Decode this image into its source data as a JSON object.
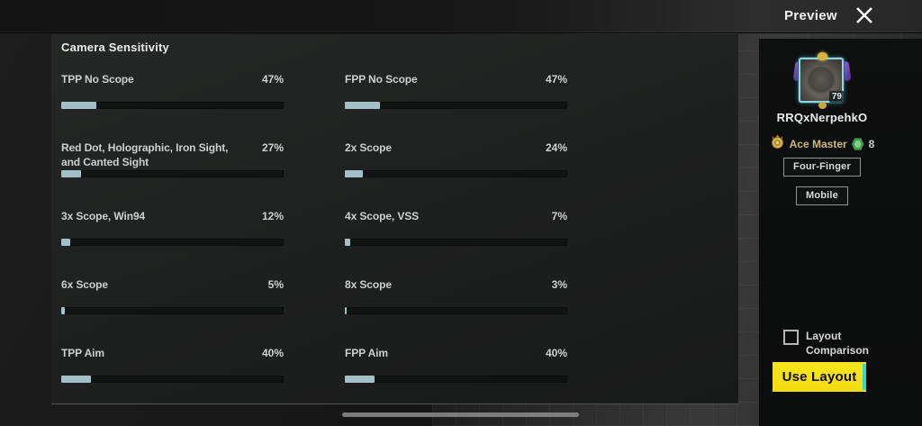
{
  "header": {
    "title": "Preview",
    "close_icon": "x-close"
  },
  "camera": {
    "title": "Camera Sensitivity",
    "slider_range_max": 300,
    "rows": [
      {
        "cells": [
          {
            "label": "TPP No Scope",
            "value": 47,
            "percent": "47%"
          },
          {
            "label": "FPP No Scope",
            "value": 47,
            "percent": "47%"
          }
        ]
      },
      {
        "cells": [
          {
            "label": "Red Dot, Holographic, Iron Sight, and Canted Sight",
            "value": 27,
            "percent": "27%"
          },
          {
            "label": "2x Scope",
            "value": 24,
            "percent": "24%"
          }
        ]
      },
      {
        "cells": [
          {
            "label": "3x Scope, Win94",
            "value": 12,
            "percent": "12%"
          },
          {
            "label": "4x Scope, VSS",
            "value": 7,
            "percent": "7%"
          }
        ]
      },
      {
        "cells": [
          {
            "label": "6x Scope",
            "value": 5,
            "percent": "5%"
          },
          {
            "label": "8x Scope",
            "value": 3,
            "percent": "3%"
          }
        ]
      },
      {
        "cells": [
          {
            "label": "TPP Aim",
            "value": 40,
            "percent": "40%"
          },
          {
            "label": "FPP Aim",
            "value": 40,
            "percent": "40%"
          }
        ]
      }
    ]
  },
  "sidebar": {
    "player": {
      "name": "RRQxNerpehkO",
      "level": "79",
      "rank": "Ace Master",
      "rank_count": "8"
    },
    "buttons": [
      {
        "label": "Four-Finger"
      },
      {
        "label": "Mobile"
      }
    ],
    "layout_comparison_label": "Layout Comparison",
    "use_layout_label": "Use Layout"
  },
  "colors": {
    "slider_fill": "#a3c0c9",
    "accent_yellow": "#f6df17",
    "accent_cyan": "#35d9c5",
    "rank_gold": "#cdb97f",
    "badge_green": "#3f9e4c"
  }
}
